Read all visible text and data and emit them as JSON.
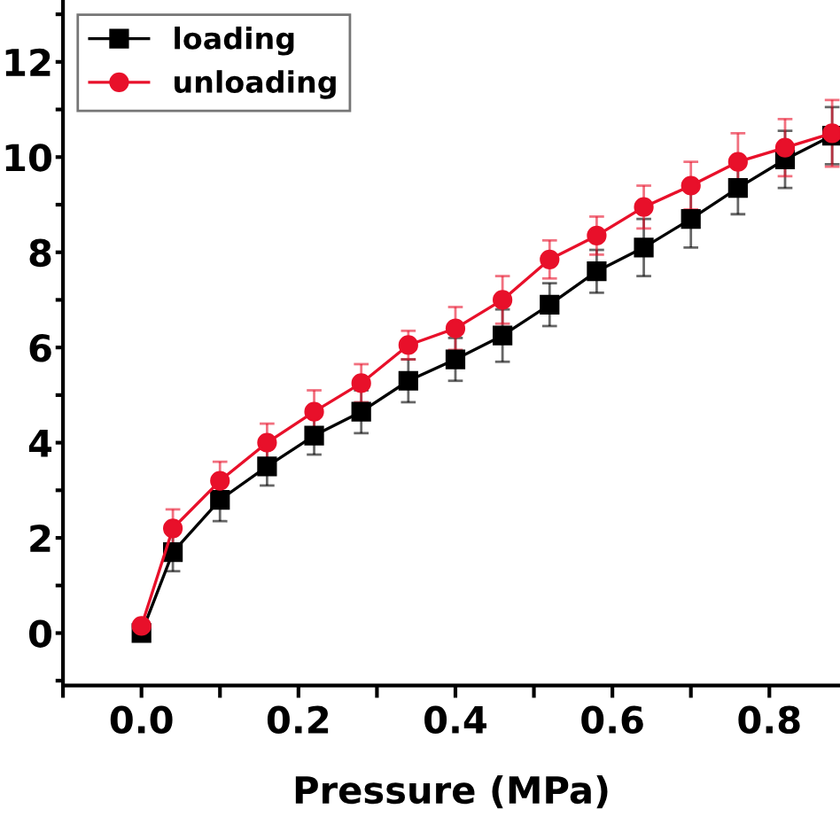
{
  "chart_data": {
    "type": "line",
    "xlabel": "Pressure (MPa)",
    "x": [
      0,
      0.04,
      0.1,
      0.16,
      0.22,
      0.28,
      0.34,
      0.4,
      0.46,
      0.52,
      0.58,
      0.64,
      0.7,
      0.76,
      0.82,
      0.88
    ],
    "series": [
      {
        "name": "loading",
        "color": "#000000",
        "marker": "square",
        "values": [
          0,
          1.7,
          2.8,
          3.5,
          4.15,
          4.65,
          5.3,
          5.75,
          6.25,
          6.9,
          7.6,
          8.1,
          8.7,
          9.35,
          9.95,
          10.45
        ],
        "errors": [
          null,
          0.4,
          0.45,
          0.4,
          0.4,
          0.45,
          0.45,
          0.45,
          0.55,
          0.45,
          0.45,
          0.6,
          0.6,
          0.55,
          0.6,
          0.6
        ]
      },
      {
        "name": "unloading",
        "color": "#e8102a",
        "marker": "circle",
        "values": [
          0.15,
          2.2,
          3.2,
          4.0,
          4.65,
          5.25,
          6.05,
          6.4,
          7.0,
          7.85,
          8.35,
          8.95,
          9.4,
          9.9,
          10.2,
          10.5
        ],
        "errors": [
          null,
          0.4,
          0.4,
          0.4,
          0.45,
          0.4,
          0.3,
          0.45,
          0.5,
          0.4,
          0.4,
          0.45,
          0.5,
          0.6,
          0.6,
          0.7
        ]
      }
    ],
    "xlim": [
      -0.1,
      0.89
    ],
    "ylim": [
      -1.1,
      13.3
    ],
    "xticks": [
      {
        "value": -0.1,
        "label": null
      },
      {
        "value": 0.0,
        "label": "0.0"
      },
      {
        "value": 0.1,
        "label": null
      },
      0.2,
      {
        "value": 0.3,
        "label": null
      },
      0.4,
      {
        "value": 0.5,
        "label": null
      },
      0.6,
      {
        "value": 0.7,
        "label": null
      },
      0.8
    ],
    "yticks": [
      {
        "value": -1,
        "label": null
      },
      {
        "value": 0,
        "label": "0"
      },
      {
        "value": 1,
        "label": null
      },
      {
        "value": 2,
        "label": "2"
      },
      {
        "value": 3,
        "label": null
      },
      {
        "value": 4,
        "label": "4"
      },
      {
        "value": 5,
        "label": null
      },
      {
        "value": 6,
        "label": "6"
      },
      {
        "value": 7,
        "label": null
      },
      {
        "value": 8,
        "label": "8"
      },
      {
        "value": 9,
        "label": null
      },
      10,
      {
        "value": 11,
        "label": null
      },
      12,
      {
        "value": 13,
        "label": null
      }
    ],
    "legend": "top left",
    "grid": false,
    "line_style": "solid"
  }
}
